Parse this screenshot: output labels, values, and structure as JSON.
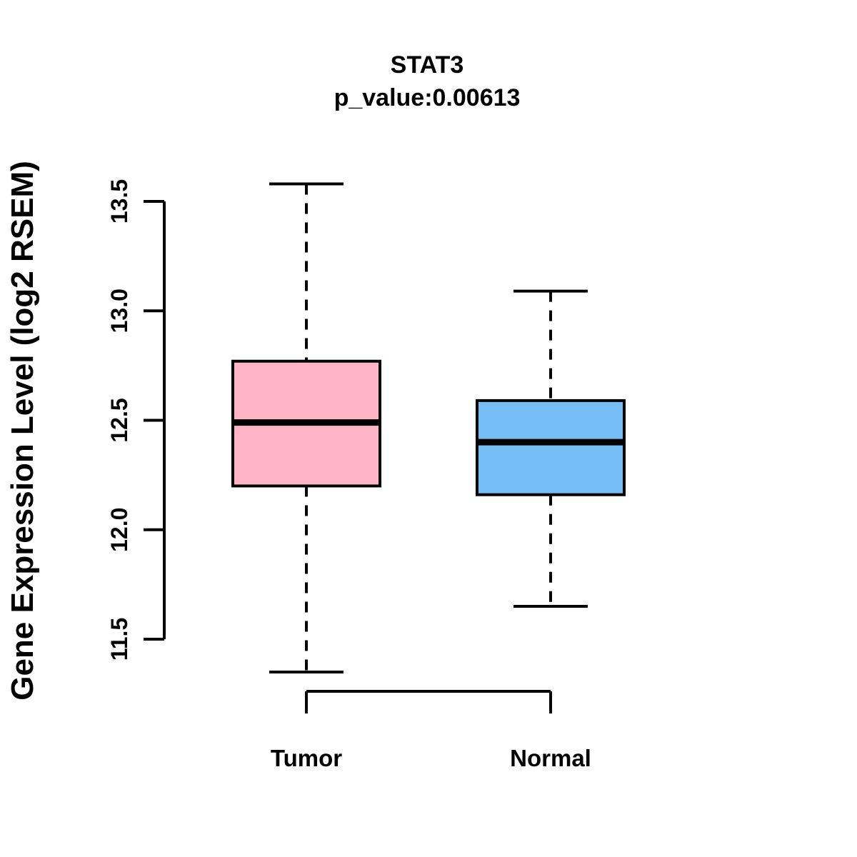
{
  "chart_data": {
    "type": "boxplot",
    "title": "STAT3",
    "subtitle": "p_value:0.00613",
    "ylabel": "Gene Expression Level (log2 RSEM)",
    "xlabel": "",
    "categories": [
      "Tumor",
      "Normal"
    ],
    "ylim": [
      11.5,
      13.5
    ],
    "yticks": [
      11.5,
      12.0,
      12.5,
      13.0,
      13.5
    ],
    "ytick_labels": [
      "11.5",
      "12.0",
      "12.5",
      "13.0",
      "13.5"
    ],
    "grid": false,
    "legend": null,
    "series": [
      {
        "name": "Tumor",
        "whisker_low": 11.35,
        "q1": 12.2,
        "median": 12.49,
        "q3": 12.77,
        "whisker_high": 13.58,
        "fill_color": "#FFB5C5"
      },
      {
        "name": "Normal",
        "whisker_low": 11.65,
        "q1": 12.16,
        "median": 12.4,
        "q3": 12.59,
        "whisker_high": 13.09,
        "fill_color": "#75BEF5"
      }
    ],
    "stroke_color": "#000000",
    "background_color": "#FFFFFF"
  }
}
